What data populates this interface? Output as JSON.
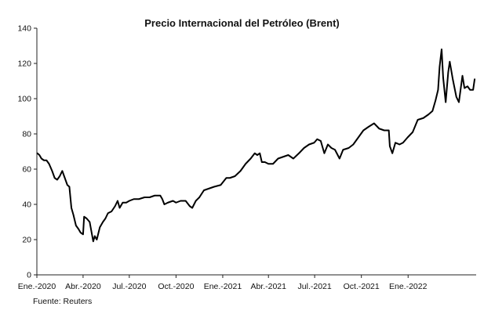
{
  "chart_data": {
    "type": "line",
    "title": "Precio Internacional del Petróleo (Brent)",
    "xlabel": "",
    "ylabel": "",
    "source": "Fuente: Reuters",
    "ylim": [
      0,
      140
    ],
    "yticks": [
      0,
      20,
      40,
      60,
      80,
      100,
      120,
      140
    ],
    "xlim": [
      "2020-01-01",
      "2022-05-15"
    ],
    "xticks": [
      {
        "date": "2020-01-01",
        "label": "Ene.-2020"
      },
      {
        "date": "2020-04-01",
        "label": "Abr.-2020"
      },
      {
        "date": "2020-07-01",
        "label": "Jul.-2020"
      },
      {
        "date": "2020-10-01",
        "label": "Oct.-2020"
      },
      {
        "date": "2021-01-01",
        "label": "Ene.-2021"
      },
      {
        "date": "2021-04-01",
        "label": "Abr.-2021"
      },
      {
        "date": "2021-07-01",
        "label": "Jul.-2021"
      },
      {
        "date": "2021-10-01",
        "label": "Oct.-2021"
      },
      {
        "date": "2022-01-01",
        "label": "Ene.-2022"
      }
    ],
    "grid": false,
    "legend": "none",
    "series": [
      {
        "color": "#000000",
        "points": [
          [
            "2020-01-02",
            69
          ],
          [
            "2020-01-06",
            68
          ],
          [
            "2020-01-10",
            66
          ],
          [
            "2020-01-15",
            65
          ],
          [
            "2020-01-20",
            65
          ],
          [
            "2020-01-25",
            63
          ],
          [
            "2020-01-31",
            59
          ],
          [
            "2020-02-05",
            55
          ],
          [
            "2020-02-10",
            54
          ],
          [
            "2020-02-15",
            56
          ],
          [
            "2020-02-20",
            59
          ],
          [
            "2020-02-25",
            55
          ],
          [
            "2020-03-01",
            51
          ],
          [
            "2020-03-05",
            50
          ],
          [
            "2020-03-09",
            38
          ],
          [
            "2020-03-13",
            34
          ],
          [
            "2020-03-18",
            28
          ],
          [
            "2020-03-23",
            26
          ],
          [
            "2020-03-27",
            24
          ],
          [
            "2020-04-01",
            23
          ],
          [
            "2020-04-03",
            33
          ],
          [
            "2020-04-08",
            32
          ],
          [
            "2020-04-14",
            30
          ],
          [
            "2020-04-21",
            19
          ],
          [
            "2020-04-24",
            22
          ],
          [
            "2020-04-28",
            20
          ],
          [
            "2020-05-04",
            27
          ],
          [
            "2020-05-10",
            30
          ],
          [
            "2020-05-15",
            32
          ],
          [
            "2020-05-20",
            35
          ],
          [
            "2020-05-27",
            36
          ],
          [
            "2020-06-03",
            39
          ],
          [
            "2020-06-08",
            42
          ],
          [
            "2020-06-12",
            38
          ],
          [
            "2020-06-18",
            41
          ],
          [
            "2020-06-25",
            41
          ],
          [
            "2020-07-01",
            42
          ],
          [
            "2020-07-10",
            43
          ],
          [
            "2020-07-20",
            43
          ],
          [
            "2020-07-31",
            44
          ],
          [
            "2020-08-10",
            44
          ],
          [
            "2020-08-20",
            45
          ],
          [
            "2020-08-31",
            45
          ],
          [
            "2020-09-04",
            43
          ],
          [
            "2020-09-08",
            40
          ],
          [
            "2020-09-15",
            41
          ],
          [
            "2020-09-25",
            42
          ],
          [
            "2020-10-01",
            41
          ],
          [
            "2020-10-10",
            42
          ],
          [
            "2020-10-20",
            42
          ],
          [
            "2020-10-28",
            39
          ],
          [
            "2020-11-02",
            38
          ],
          [
            "2020-11-09",
            42
          ],
          [
            "2020-11-16",
            44
          ],
          [
            "2020-11-25",
            48
          ],
          [
            "2020-12-05",
            49
          ],
          [
            "2020-12-15",
            50
          ],
          [
            "2020-12-28",
            51
          ],
          [
            "2021-01-08",
            55
          ],
          [
            "2021-01-15",
            55
          ],
          [
            "2021-01-25",
            56
          ],
          [
            "2021-02-05",
            59
          ],
          [
            "2021-02-15",
            63
          ],
          [
            "2021-02-25",
            66
          ],
          [
            "2021-03-05",
            69
          ],
          [
            "2021-03-10",
            68
          ],
          [
            "2021-03-15",
            69
          ],
          [
            "2021-03-19",
            64
          ],
          [
            "2021-03-25",
            64
          ],
          [
            "2021-04-01",
            63
          ],
          [
            "2021-04-10",
            63
          ],
          [
            "2021-04-20",
            66
          ],
          [
            "2021-04-30",
            67
          ],
          [
            "2021-05-10",
            68
          ],
          [
            "2021-05-20",
            66
          ],
          [
            "2021-05-31",
            69
          ],
          [
            "2021-06-10",
            72
          ],
          [
            "2021-06-20",
            74
          ],
          [
            "2021-06-30",
            75
          ],
          [
            "2021-07-06",
            77
          ],
          [
            "2021-07-13",
            76
          ],
          [
            "2021-07-20",
            69
          ],
          [
            "2021-07-27",
            74
          ],
          [
            "2021-08-03",
            72
          ],
          [
            "2021-08-10",
            71
          ],
          [
            "2021-08-19",
            66
          ],
          [
            "2021-08-26",
            71
          ],
          [
            "2021-09-06",
            72
          ],
          [
            "2021-09-15",
            74
          ],
          [
            "2021-09-25",
            78
          ],
          [
            "2021-10-05",
            82
          ],
          [
            "2021-10-15",
            84
          ],
          [
            "2021-10-26",
            86
          ],
          [
            "2021-11-05",
            83
          ],
          [
            "2021-11-15",
            82
          ],
          [
            "2021-11-24",
            82
          ],
          [
            "2021-11-26",
            73
          ],
          [
            "2021-12-01",
            69
          ],
          [
            "2021-12-07",
            75
          ],
          [
            "2021-12-15",
            74
          ],
          [
            "2021-12-22",
            75
          ],
          [
            "2021-12-31",
            78
          ],
          [
            "2022-01-10",
            81
          ],
          [
            "2022-01-20",
            88
          ],
          [
            "2022-01-31",
            89
          ],
          [
            "2022-02-10",
            91
          ],
          [
            "2022-02-18",
            93
          ],
          [
            "2022-02-24",
            99
          ],
          [
            "2022-03-01",
            105
          ],
          [
            "2022-03-04",
            118
          ],
          [
            "2022-03-08",
            128
          ],
          [
            "2022-03-11",
            112
          ],
          [
            "2022-03-16",
            98
          ],
          [
            "2022-03-21",
            115
          ],
          [
            "2022-03-24",
            121
          ],
          [
            "2022-03-30",
            111
          ],
          [
            "2022-04-06",
            101
          ],
          [
            "2022-04-11",
            98
          ],
          [
            "2022-04-18",
            113
          ],
          [
            "2022-04-22",
            106
          ],
          [
            "2022-04-28",
            107
          ],
          [
            "2022-05-03",
            105
          ],
          [
            "2022-05-09",
            105
          ],
          [
            "2022-05-12",
            111
          ]
        ]
      }
    ]
  }
}
